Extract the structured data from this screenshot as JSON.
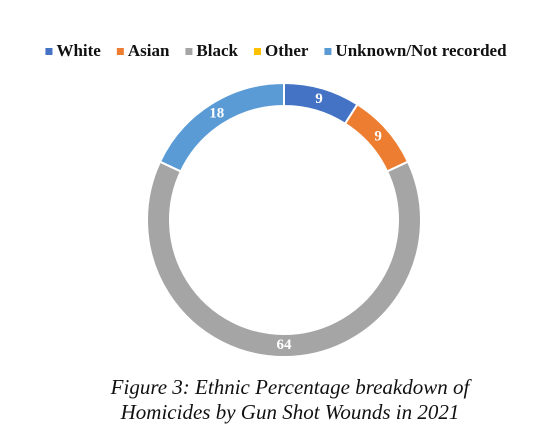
{
  "chart_data": {
    "type": "donut",
    "categories": [
      "White",
      "Asian",
      "Black",
      "Other",
      "Unknown/Not recorded"
    ],
    "values": [
      9,
      9,
      64,
      0,
      18
    ],
    "colors": [
      "#4472c4",
      "#ed7d31",
      "#a5a5a5",
      "#ffc000",
      "#5b9bd5"
    ],
    "legend": "top",
    "caption": [
      "Figure 3: Ethnic Percentage breakdown of",
      "Homicides by Gun Shot Wounds in 2021"
    ]
  }
}
